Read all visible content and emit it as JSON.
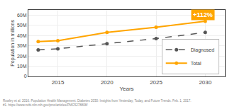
{
  "chart_data": {
    "type": "line",
    "xlabel": "Years",
    "ylabel": "Population in millions",
    "x": [
      2013,
      2015,
      2020,
      2025,
      2030
    ],
    "series": [
      {
        "name": "Total",
        "color": "#FFA500",
        "values": [
          34,
          35,
          43,
          48,
          54
        ],
        "line_style": "solid",
        "marker": "circle"
      },
      {
        "name": "Diagnosed",
        "color": "#555555",
        "values": [
          26,
          27,
          32,
          37,
          43
        ],
        "line_style": "dashed",
        "marker": "circle"
      }
    ],
    "xlim": [
      2012,
      2032
    ],
    "xticks": [
      2015,
      2020,
      2025,
      2030
    ],
    "ylim": [
      0,
      65
    ],
    "yticks": [
      0,
      {
        "value": 10,
        "label": "10M"
      },
      {
        "value": 20,
        "label": "20M"
      },
      {
        "value": 30,
        "label": "30M"
      },
      {
        "value": 40,
        "label": "40M"
      },
      {
        "value": 50,
        "label": "50M"
      },
      {
        "value": 60,
        "label": "60M"
      }
    ],
    "grid": true,
    "legend": "right",
    "annotations": [
      {
        "text": "+112%",
        "x": 2028.5,
        "y": 60,
        "color": "#FFA500"
      },
      {
        "text": "Rowley et al. 2016. Population Health Management. Diabetes 2030: Insights from Yesterday, Today, and Future Trends. Feb. 1, 2017.\n#1. https://www.ncbi.nlm.nih.gov/pmc/articles/PMC5278808/"
      }
    ]
  }
}
